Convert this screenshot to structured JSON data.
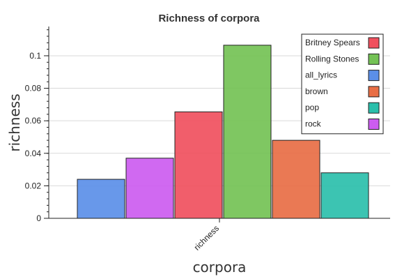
{
  "chart_data": {
    "type": "bar",
    "title": "Richness of corpora",
    "xlabel": "corpora",
    "ylabel": "richness",
    "categories": [
      "richness"
    ],
    "ylim": [
      0,
      0.118
    ],
    "yticks": [
      0,
      0.02,
      0.04,
      0.06,
      0.08,
      0.1
    ],
    "ytick_labels": [
      "0",
      "0.02",
      "0.04",
      "0.06",
      "0.08",
      "0.1"
    ],
    "grid": true,
    "legend_position": "top-right",
    "series": [
      {
        "name": "all_lyrics",
        "values": [
          0.024
        ],
        "color": "#5b8fe8"
      },
      {
        "name": "rock",
        "values": [
          0.037
        ],
        "color": "#cc5cf0"
      },
      {
        "name": "Britney Spears",
        "values": [
          0.0655
        ],
        "color": "#f0505e"
      },
      {
        "name": "Rolling Stones",
        "values": [
          0.1065
        ],
        "color": "#74c255"
      },
      {
        "name": "brown",
        "values": [
          0.048
        ],
        "color": "#e86e45"
      },
      {
        "name": "pop",
        "values": [
          0.028
        ],
        "color": "#2bbfab"
      }
    ],
    "legend": [
      {
        "label": "Britney Spears",
        "color": "#f0505e"
      },
      {
        "label": "Rolling Stones",
        "color": "#74c255"
      },
      {
        "label": "all_lyrics",
        "color": "#5b8fe8"
      },
      {
        "label": "brown",
        "color": "#e86e45"
      },
      {
        "label": "pop",
        "color": "#2bbfab"
      },
      {
        "label": "rock",
        "color": "#cc5cf0"
      }
    ]
  }
}
